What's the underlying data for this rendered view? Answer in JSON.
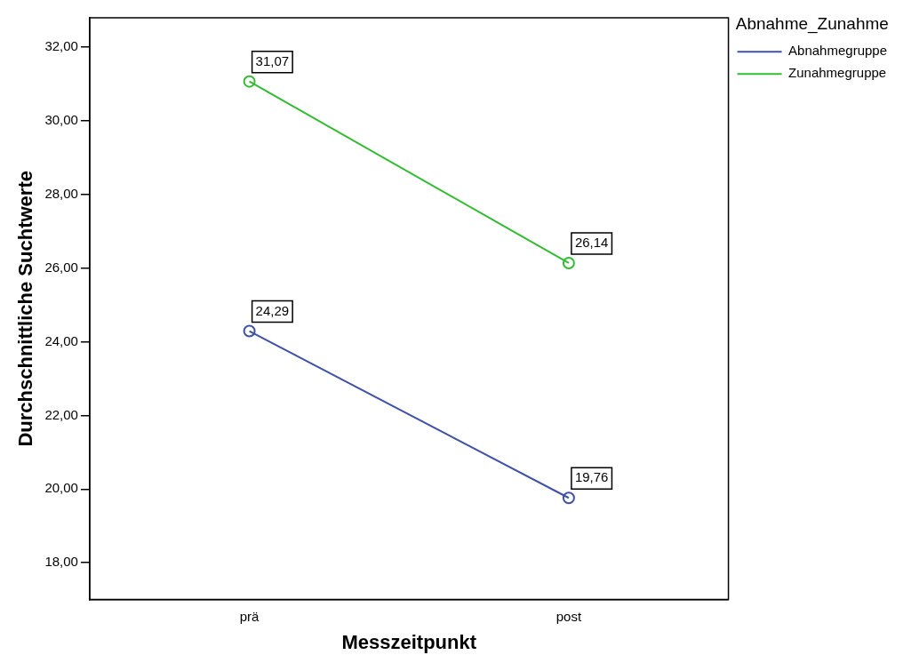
{
  "chart_data": {
    "type": "line",
    "xlabel": "Messzeitpunkt",
    "ylabel": "Durchschnittliche Suchtwerte",
    "legend_title": "Abnahme_Zunahme",
    "categories": [
      "prä",
      "post"
    ],
    "series": [
      {
        "name": "Abnahmegruppe",
        "color": "#3f51a8",
        "values": [
          24.29,
          19.76
        ],
        "value_labels": [
          "24,29",
          "19,76"
        ]
      },
      {
        "name": "Zunahmegruppe",
        "color": "#33bb33",
        "values": [
          31.07,
          26.14
        ],
        "value_labels": [
          "31,07",
          "26,14"
        ]
      }
    ],
    "ylim": [
      17,
      32.8
    ],
    "yticks": [
      {
        "value": 18,
        "label": "18,00"
      },
      {
        "value": 20,
        "label": "20,00"
      },
      {
        "value": 22,
        "label": "22,00"
      },
      {
        "value": 24,
        "label": "24,00"
      },
      {
        "value": 26,
        "label": "26,00"
      },
      {
        "value": 28,
        "label": "28,00"
      },
      {
        "value": 30,
        "label": "30,00"
      },
      {
        "value": 32,
        "label": "32,00"
      }
    ],
    "grid": false,
    "legend": "top right",
    "marker": "circle",
    "line_style": "solid"
  }
}
